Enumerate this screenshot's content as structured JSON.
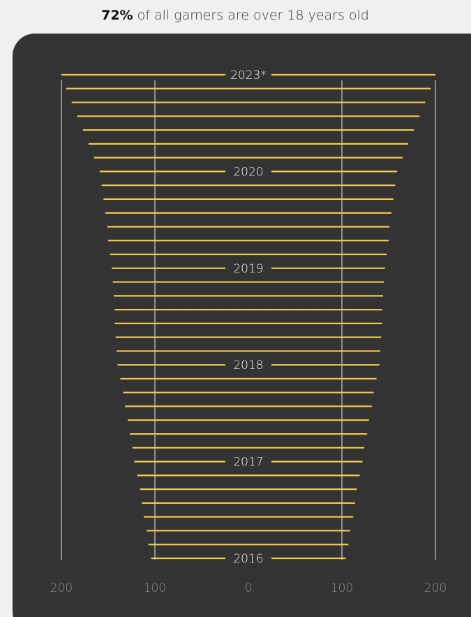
{
  "chart_data": {
    "type": "spread",
    "title_bold": "72%",
    "title": "of all gamers are over 18 years old",
    "categories": [
      "2023*",
      null,
      null,
      null,
      null,
      null,
      null,
      "2020",
      null,
      null,
      null,
      null,
      null,
      null,
      "2019",
      null,
      null,
      null,
      null,
      null,
      null,
      "2018",
      null,
      null,
      null,
      null,
      null,
      null,
      "2017",
      null,
      null,
      null,
      null,
      null,
      null,
      "2016"
    ],
    "values": [
      200,
      195,
      189,
      183,
      177,
      171,
      165,
      159,
      157,
      155,
      153,
      151,
      150,
      148,
      146,
      145,
      144,
      143,
      143,
      142,
      141,
      140,
      137,
      134,
      132,
      129,
      127,
      124,
      122,
      119,
      116,
      114,
      112,
      109,
      107,
      104
    ],
    "color": "#f2c94c",
    "xlim": [
      -200,
      200
    ],
    "xticks": [
      {
        "value": -200,
        "label": "200"
      },
      {
        "value": -100,
        "label": "100"
      },
      0,
      100,
      200
    ],
    "grid": true
  }
}
